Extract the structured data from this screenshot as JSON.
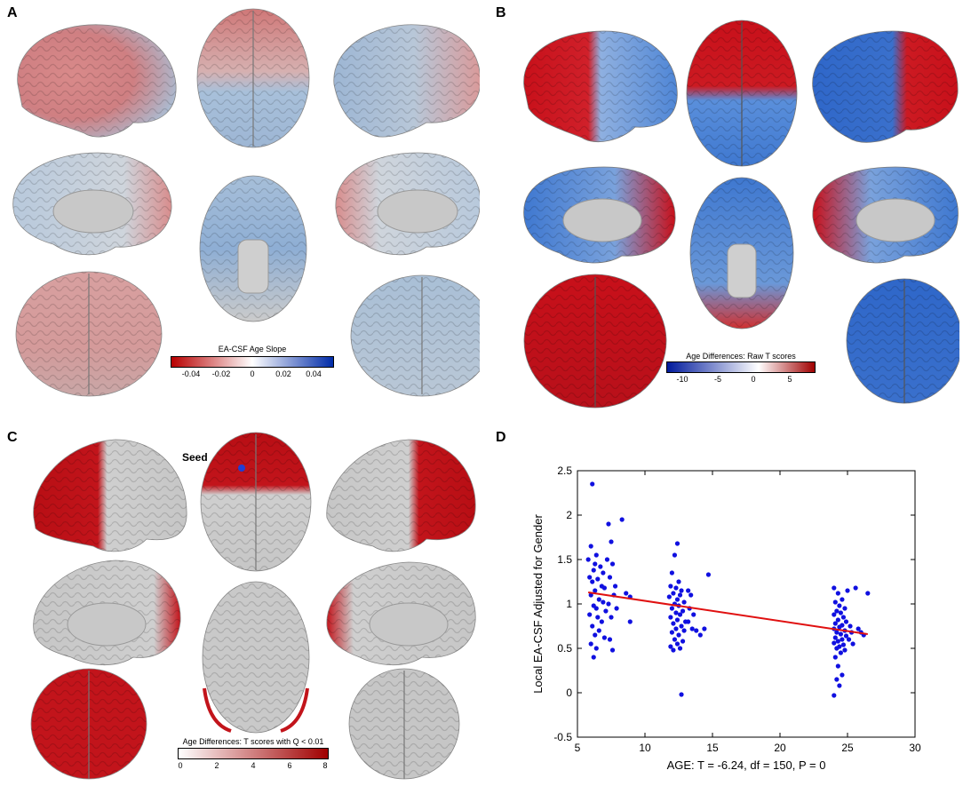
{
  "panels": {
    "A": {
      "letter": "A",
      "colorbar_title": "EA-CSF Age Slope",
      "colorbar_ticks": [
        "-0.04",
        "-0.02",
        "0",
        "0.02",
        "0.04"
      ]
    },
    "B": {
      "letter": "B",
      "colorbar_title": "Age Differences: Raw T scores",
      "colorbar_ticks": [
        "-10",
        "-5",
        "0",
        "5"
      ]
    },
    "C": {
      "letter": "C",
      "seed_label": "Seed",
      "colorbar_title": "Age Differences: T scores with Q < 0.01",
      "colorbar_ticks": [
        "0",
        "2",
        "4",
        "6",
        "8"
      ]
    },
    "D": {
      "letter": "D"
    }
  },
  "colors": {
    "red": "#c8102e",
    "blue": "#1f4fbf",
    "brain_gray": "#c9c9c9",
    "scatter_point": "#1010e0",
    "fit_line": "#e01010"
  },
  "chart_data": {
    "type": "scatter",
    "xlabel": "AGE: T = -6.24, df = 150, P = 0",
    "ylabel": "Local EA-CSF Adjusted for Gender",
    "xlim": [
      5,
      30
    ],
    "ylim": [
      -0.5,
      2.5
    ],
    "xticks": [
      "5",
      "10",
      "15",
      "20",
      "25",
      "30"
    ],
    "yticks": [
      "-0.5",
      "0",
      "0.5",
      "1",
      "1.5",
      "2",
      "2.5"
    ],
    "fit_line": {
      "x": [
        5.8,
        26.5
      ],
      "y": [
        1.13,
        0.66
      ]
    },
    "points": [
      [
        6.1,
        2.35
      ],
      [
        6.0,
        1.65
      ],
      [
        6.4,
        1.55
      ],
      [
        5.8,
        1.5
      ],
      [
        6.3,
        1.45
      ],
      [
        6.7,
        1.42
      ],
      [
        6.2,
        1.38
      ],
      [
        6.9,
        1.35
      ],
      [
        5.9,
        1.3
      ],
      [
        6.5,
        1.28
      ],
      [
        6.1,
        1.25
      ],
      [
        6.8,
        1.2
      ],
      [
        7.0,
        1.18
      ],
      [
        6.3,
        1.15
      ],
      [
        6.0,
        1.1
      ],
      [
        6.6,
        1.05
      ],
      [
        6.9,
        1.02
      ],
      [
        6.2,
        0.98
      ],
      [
        6.4,
        0.95
      ],
      [
        7.1,
        0.92
      ],
      [
        5.9,
        0.88
      ],
      [
        6.5,
        0.85
      ],
      [
        6.8,
        0.8
      ],
      [
        6.1,
        0.75
      ],
      [
        6.6,
        0.7
      ],
      [
        6.3,
        0.65
      ],
      [
        7.0,
        0.62
      ],
      [
        6.0,
        0.55
      ],
      [
        6.4,
        0.5
      ],
      [
        6.2,
        0.4
      ],
      [
        7.3,
        1.9
      ],
      [
        7.5,
        1.7
      ],
      [
        7.2,
        1.5
      ],
      [
        7.6,
        1.45
      ],
      [
        7.4,
        1.3
      ],
      [
        7.8,
        1.2
      ],
      [
        7.7,
        1.1
      ],
      [
        7.3,
        1.0
      ],
      [
        7.9,
        0.95
      ],
      [
        7.5,
        0.85
      ],
      [
        7.4,
        0.6
      ],
      [
        7.6,
        0.48
      ],
      [
        8.3,
        1.95
      ],
      [
        8.6,
        1.12
      ],
      [
        8.9,
        1.08
      ],
      [
        8.9,
        0.8
      ],
      [
        12.4,
        1.68
      ],
      [
        12.2,
        1.55
      ],
      [
        12.0,
        1.35
      ],
      [
        12.5,
        1.25
      ],
      [
        11.9,
        1.2
      ],
      [
        12.3,
        1.18
      ],
      [
        12.7,
        1.15
      ],
      [
        12.1,
        1.12
      ],
      [
        12.6,
        1.1
      ],
      [
        11.8,
        1.08
      ],
      [
        12.4,
        1.05
      ],
      [
        12.9,
        1.02
      ],
      [
        12.2,
        1.0
      ],
      [
        12.5,
        0.98
      ],
      [
        12.0,
        0.95
      ],
      [
        12.8,
        0.92
      ],
      [
        12.3,
        0.9
      ],
      [
        12.6,
        0.88
      ],
      [
        11.9,
        0.85
      ],
      [
        12.4,
        0.82
      ],
      [
        13.0,
        0.8
      ],
      [
        12.1,
        0.78
      ],
      [
        12.7,
        0.75
      ],
      [
        12.3,
        0.72
      ],
      [
        12.9,
        0.7
      ],
      [
        12.0,
        0.68
      ],
      [
        12.5,
        0.65
      ],
      [
        12.2,
        0.6
      ],
      [
        12.8,
        0.58
      ],
      [
        12.4,
        0.55
      ],
      [
        11.9,
        0.52
      ],
      [
        12.6,
        0.5
      ],
      [
        12.1,
        0.48
      ],
      [
        12.7,
        -0.02
      ],
      [
        13.2,
        1.15
      ],
      [
        13.4,
        1.1
      ],
      [
        13.3,
        0.95
      ],
      [
        13.6,
        0.88
      ],
      [
        13.2,
        0.8
      ],
      [
        13.5,
        0.72
      ],
      [
        13.8,
        0.7
      ],
      [
        14.1,
        0.65
      ],
      [
        14.4,
        0.72
      ],
      [
        14.7,
        1.33
      ],
      [
        24.0,
        1.18
      ],
      [
        24.3,
        1.12
      ],
      [
        24.6,
        1.05
      ],
      [
        24.1,
        1.02
      ],
      [
        24.4,
        0.98
      ],
      [
        24.8,
        0.95
      ],
      [
        24.2,
        0.92
      ],
      [
        24.5,
        0.9
      ],
      [
        24.0,
        0.88
      ],
      [
        24.7,
        0.85
      ],
      [
        24.3,
        0.82
      ],
      [
        24.9,
        0.8
      ],
      [
        24.1,
        0.78
      ],
      [
        24.6,
        0.76
      ],
      [
        24.4,
        0.74
      ],
      [
        24.0,
        0.72
      ],
      [
        24.8,
        0.7
      ],
      [
        24.2,
        0.68
      ],
      [
        24.5,
        0.66
      ],
      [
        24.9,
        0.64
      ],
      [
        24.1,
        0.62
      ],
      [
        24.6,
        0.6
      ],
      [
        24.3,
        0.58
      ],
      [
        24.0,
        0.56
      ],
      [
        24.7,
        0.54
      ],
      [
        24.4,
        0.52
      ],
      [
        24.2,
        0.5
      ],
      [
        24.8,
        0.48
      ],
      [
        24.5,
        0.45
      ],
      [
        24.1,
        0.4
      ],
      [
        24.3,
        0.3
      ],
      [
        24.6,
        0.2
      ],
      [
        24.2,
        0.15
      ],
      [
        24.4,
        0.08
      ],
      [
        24.0,
        -0.03
      ],
      [
        25.0,
        1.15
      ],
      [
        25.2,
        0.75
      ],
      [
        25.3,
        0.68
      ],
      [
        25.1,
        0.6
      ],
      [
        25.4,
        0.55
      ],
      [
        25.6,
        1.18
      ],
      [
        25.8,
        0.72
      ],
      [
        26.0,
        0.68
      ],
      [
        26.2,
        0.65
      ],
      [
        26.5,
        1.12
      ]
    ]
  }
}
